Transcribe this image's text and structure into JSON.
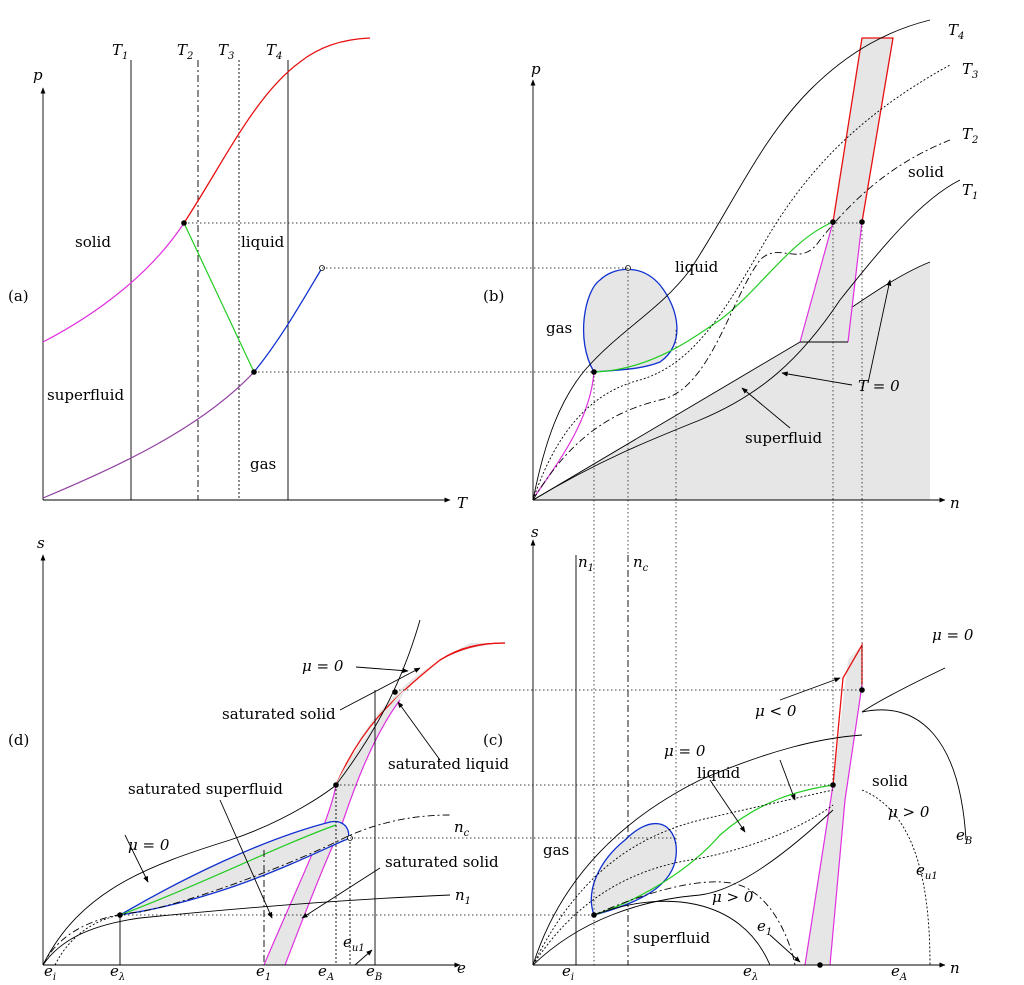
{
  "panel_a": {
    "tag": "(a)",
    "y_axis": "p",
    "x_axis": "T",
    "isotherms": [
      {
        "sym": "T",
        "sub": "1"
      },
      {
        "sym": "T",
        "sub": "2"
      },
      {
        "sym": "T",
        "sub": "3"
      },
      {
        "sym": "T",
        "sub": "4"
      }
    ],
    "regions": {
      "solid": "solid",
      "liquid": "liquid",
      "superfluid": "superfluid",
      "gas": "gas"
    }
  },
  "panel_b": {
    "tag": "(b)",
    "y_axis": "p",
    "x_axis": "n",
    "isotherms": [
      {
        "sym": "T",
        "sub": "4"
      },
      {
        "sym": "T",
        "sub": "3"
      },
      {
        "sym": "T",
        "sub": "2"
      },
      {
        "sym": "T",
        "sub": "1"
      }
    ],
    "regions": {
      "solid": "solid",
      "liquid": "liquid",
      "gas": "gas",
      "superfluid": "superfluid"
    },
    "t_zero": "T = 0"
  },
  "panel_c": {
    "tag": "(c)",
    "y_axis": "s",
    "x_axis": "n",
    "verticals": [
      {
        "sym": "n",
        "sub": "1"
      },
      {
        "sym": "n",
        "sub": "c"
      }
    ],
    "regions": {
      "gas": "gas",
      "liquid": "liquid",
      "solid": "solid",
      "superfluid": "superfluid"
    },
    "mu_zero_top": "μ = 0",
    "mu_neg": "μ < 0",
    "mu_zero_mid": "μ = 0",
    "mu_pos_right": "μ > 0",
    "mu_pos_low": "μ > 0",
    "curves": [
      {
        "sym": "e",
        "sub": "B"
      },
      {
        "sym": "e",
        "sub": "u1"
      },
      {
        "sym": "e",
        "sub": "1"
      }
    ],
    "ticks": [
      {
        "sym": "e",
        "sub": "i"
      },
      {
        "sym": "e",
        "sub": "λ"
      },
      {
        "sym": "e",
        "sub": "A"
      }
    ]
  },
  "panel_d": {
    "tag": "(d)",
    "y_axis": "s",
    "x_axis": "e",
    "mu_zero_top": "μ = 0",
    "mu_zero_left": "μ = 0",
    "saturated_solid_top": "saturated solid",
    "saturated_liquid": "saturated liquid",
    "saturated_superfluid": "saturated superfluid",
    "saturated_solid_low": "saturated solid",
    "curves": [
      {
        "sym": "n",
        "sub": "c"
      },
      {
        "sym": "n",
        "sub": "1"
      },
      {
        "sym": "e",
        "sub": "u1"
      }
    ],
    "ticks": [
      {
        "sym": "e",
        "sub": "i"
      },
      {
        "sym": "e",
        "sub": "λ"
      },
      {
        "sym": "e",
        "sub": "1"
      },
      {
        "sym": "e",
        "sub": "A"
      },
      {
        "sym": "e",
        "sub": "B"
      }
    ]
  }
}
